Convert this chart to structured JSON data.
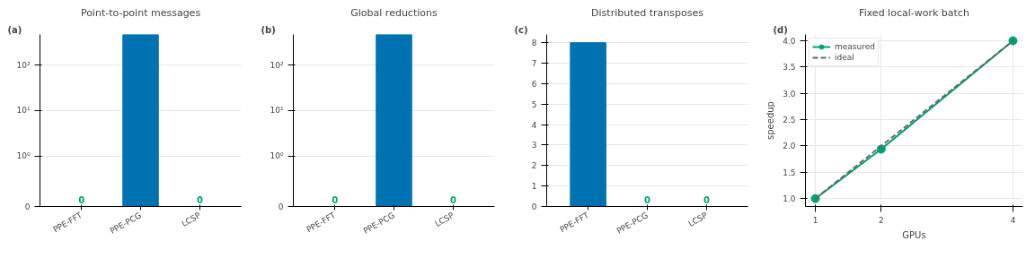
{
  "chart_data": [
    {
      "type": "bar",
      "title": "Point-to-point messages",
      "annotations": [
        "(a)"
      ],
      "categories": [
        "PPE-FFT",
        "PPE-PCG",
        "LCSP"
      ],
      "series": [
        {
          "color": "#0072b2",
          "values": [
            0,
            470,
            0
          ]
        }
      ],
      "value_labels": [
        "0",
        null,
        "0"
      ],
      "log": true,
      "ylim": [
        0,
        470
      ],
      "yticks": [
        0,
        {
          "value": 1,
          "label": "10⁰"
        },
        {
          "value": 10,
          "label": "10¹"
        },
        {
          "value": 100,
          "label": "10²"
        }
      ],
      "grid": "y"
    },
    {
      "type": "bar",
      "title": "Global reductions",
      "annotations": [
        "(b)"
      ],
      "categories": [
        "PPE-FFT",
        "PPE-PCG",
        "LCSP"
      ],
      "series": [
        {
          "color": "#0072b2",
          "values": [
            0,
            470,
            0
          ]
        }
      ],
      "value_labels": [
        "0",
        null,
        "0"
      ],
      "log": true,
      "ylim": [
        0,
        470
      ],
      "yticks": [
        0,
        {
          "value": 1,
          "label": "10⁰"
        },
        {
          "value": 10,
          "label": "10¹"
        },
        {
          "value": 100,
          "label": "10²"
        }
      ],
      "grid": "y"
    },
    {
      "type": "bar",
      "title": "Distributed transposes",
      "annotations": [
        "(c)"
      ],
      "categories": [
        "PPE-FFT",
        "PPE-PCG",
        "LCSP"
      ],
      "series": [
        {
          "color": "#0072b2",
          "values": [
            8,
            0,
            0
          ]
        }
      ],
      "value_labels": [
        null,
        "0",
        "0"
      ],
      "ylim": [
        0,
        8.4
      ],
      "yticks": [
        0,
        1,
        2,
        3,
        4,
        5,
        6,
        7,
        8
      ],
      "grid": "y"
    },
    {
      "type": "line",
      "title": "Fixed local-work batch",
      "annotations": [
        "(d)"
      ],
      "xlabel": "GPUs",
      "ylabel": "speedup",
      "x": [
        1,
        2,
        4
      ],
      "series": [
        {
          "name": "measured",
          "color": "#009e73",
          "values": [
            1.0,
            1.94,
            4.0
          ],
          "marker": "circle",
          "line_style": "solid"
        },
        {
          "name": "ideal",
          "color": "#666666",
          "values": [
            1,
            2,
            4
          ],
          "marker": "none",
          "line_style": "dashed"
        }
      ],
      "xlim": [
        0.85,
        4.15
      ],
      "ylim": [
        0.85,
        4.12
      ],
      "xticks": [
        1,
        2,
        4
      ],
      "yticks": [
        {
          "value": 1,
          "label": "1.0"
        },
        1.5,
        {
          "value": 2,
          "label": "2.0"
        },
        2.5,
        {
          "value": 3,
          "label": "3.0"
        },
        3.5,
        {
          "value": 4,
          "label": "4.0"
        }
      ],
      "grid": true,
      "legend": "top left"
    }
  ]
}
